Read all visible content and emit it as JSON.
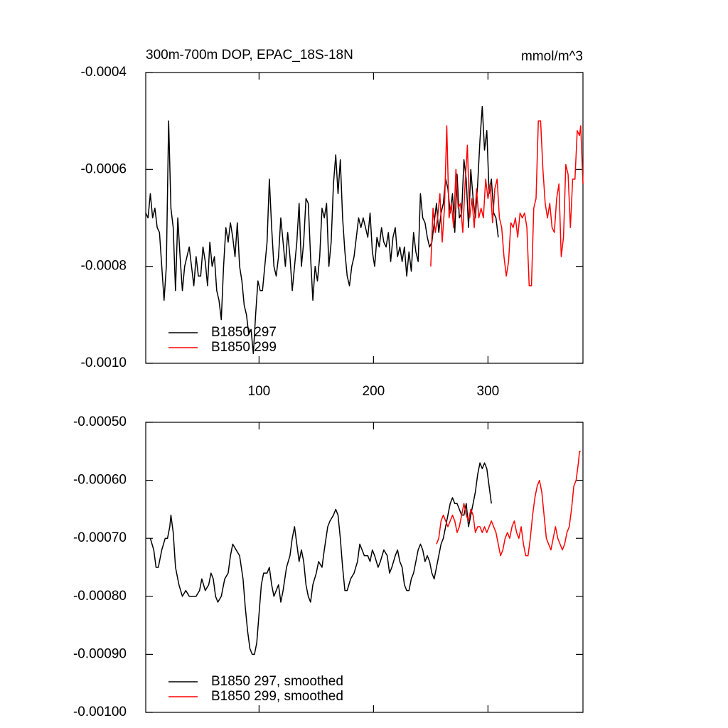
{
  "chart_data": [
    {
      "type": "line",
      "title": "300m-700m DOP, EPAC_18S-18N",
      "units": "mmol/m^3",
      "xlim": [
        1,
        383
      ],
      "xticks": [
        100,
        200,
        300
      ],
      "xtick_labels": true,
      "ylim": [
        -0.001,
        -0.0004
      ],
      "yticks": [
        {
          "value": -0.001,
          "label": "-0.0010"
        },
        {
          "value": -0.0008,
          "label": "-0.0008"
        },
        {
          "value": -0.0006,
          "label": "-0.0006"
        },
        -0.0004
      ],
      "legend": "lower left",
      "series": [
        {
          "name": "B1850 297",
          "color": "#000000",
          "x": [
            1,
            3,
            5,
            7,
            9,
            11,
            13,
            15,
            17,
            19,
            21,
            23,
            25,
            27,
            29,
            31,
            33,
            35,
            37,
            39,
            41,
            43,
            45,
            47,
            49,
            51,
            53,
            55,
            57,
            59,
            61,
            63,
            65,
            67,
            69,
            71,
            73,
            75,
            77,
            79,
            81,
            83,
            85,
            87,
            89,
            91,
            93,
            95,
            97,
            99,
            101,
            103,
            105,
            107,
            109,
            111,
            113,
            115,
            117,
            119,
            121,
            123,
            125,
            127,
            129,
            131,
            133,
            135,
            137,
            139,
            141,
            143,
            145,
            147,
            149,
            151,
            153,
            155,
            157,
            159,
            161,
            163,
            165,
            167,
            169,
            171,
            173,
            175,
            177,
            179,
            181,
            183,
            185,
            187,
            189,
            191,
            193,
            195,
            197,
            199,
            201,
            203,
            205,
            207,
            209,
            211,
            213,
            215,
            217,
            219,
            221,
            223,
            225,
            227,
            229,
            231,
            233,
            235,
            237,
            239,
            241,
            243,
            245,
            247,
            249,
            251,
            253,
            255,
            257,
            259,
            261,
            263,
            265,
            267,
            269,
            271,
            273,
            275,
            277,
            279,
            281,
            283,
            285,
            287,
            289,
            291,
            293,
            295,
            297,
            299,
            301,
            303,
            305,
            307,
            309
          ],
          "values": [
            -0.00069,
            -0.0007,
            -0.00065,
            -0.0007,
            -0.00068,
            -0.00072,
            -0.00073,
            -0.0008,
            -0.00087,
            -0.0008,
            -0.0005,
            -0.00068,
            -0.00072,
            -0.00085,
            -0.0007,
            -0.00078,
            -0.00085,
            -0.0008,
            -0.00078,
            -0.00076,
            -0.0008,
            -0.00084,
            -0.00078,
            -0.00082,
            -0.00082,
            -0.00076,
            -0.00079,
            -0.00084,
            -0.00075,
            -0.0008,
            -0.00078,
            -0.00085,
            -0.00087,
            -0.00091,
            -0.0008,
            -0.00072,
            -0.00075,
            -0.00071,
            -0.00074,
            -0.00078,
            -0.00071,
            -0.0008,
            -0.00083,
            -0.00088,
            -0.0009,
            -0.00094,
            -0.00093,
            -0.00098,
            -0.0009,
            -0.00083,
            -0.00085,
            -0.00085,
            -0.0008,
            -0.00075,
            -0.00062,
            -0.00072,
            -0.0008,
            -0.00082,
            -0.00078,
            -0.0007,
            -0.00075,
            -0.0008,
            -0.00073,
            -0.00078,
            -0.00085,
            -0.0008,
            -0.00075,
            -0.00067,
            -0.0008,
            -0.00075,
            -0.00066,
            -0.00067,
            -0.00078,
            -0.00087,
            -0.0008,
            -0.00083,
            -0.00078,
            -0.00068,
            -0.0007,
            -0.00067,
            -0.0008,
            -0.00075,
            -0.00063,
            -0.00057,
            -0.00065,
            -0.00058,
            -0.0007,
            -0.00077,
            -0.00082,
            -0.00084,
            -0.0008,
            -0.00078,
            -0.00074,
            -0.0007,
            -0.00072,
            -0.0007,
            -0.00072,
            -0.00074,
            -0.00069,
            -0.00077,
            -0.0008,
            -0.00074,
            -0.00076,
            -0.00072,
            -0.00075,
            -0.00076,
            -0.00073,
            -0.00079,
            -0.00074,
            -0.00072,
            -0.00078,
            -0.00076,
            -0.00079,
            -0.00076,
            -0.00082,
            -0.00077,
            -0.00081,
            -0.00073,
            -0.00077,
            -0.00079,
            -0.00065,
            -0.0007,
            -0.00071,
            -0.00074,
            -0.00076,
            -0.00075,
            -0.00071,
            -0.00067,
            -0.00073,
            -0.00069,
            -0.00067,
            -0.00062,
            -0.00064,
            -0.00069,
            -0.00065,
            -0.00073,
            -0.00061,
            -0.0007,
            -0.00069,
            -0.00058,
            -0.00062,
            -0.00072,
            -0.0006,
            -0.00066,
            -0.0007,
            -0.00063,
            -0.00054,
            -0.00047,
            -0.00056,
            -0.00052,
            -0.00065,
            -0.00062,
            -0.00069,
            -0.0007,
            -0.00074
          ]
        },
        {
          "name": "B1850 299",
          "color": "#ff0000",
          "x": [
            250,
            252,
            254,
            256,
            258,
            260,
            262,
            264,
            266,
            268,
            270,
            272,
            274,
            276,
            278,
            280,
            282,
            284,
            286,
            288,
            290,
            292,
            294,
            296,
            298,
            300,
            302,
            304,
            306,
            308,
            310,
            312,
            314,
            316,
            318,
            320,
            322,
            324,
            326,
            328,
            330,
            332,
            334,
            336,
            338,
            340,
            342,
            344,
            346,
            348,
            350,
            352,
            354,
            356,
            358,
            360,
            362,
            364,
            366,
            368,
            370,
            372,
            374,
            376,
            378,
            380,
            381,
            383
          ],
          "values": [
            -0.0008,
            -0.00068,
            -0.00073,
            -0.0007,
            -0.00065,
            -0.00075,
            -0.00068,
            -0.00051,
            -0.0007,
            -0.00067,
            -0.00072,
            -0.0006,
            -0.00068,
            -0.00067,
            -0.00073,
            -0.00063,
            -0.00055,
            -0.0007,
            -0.00066,
            -0.00072,
            -0.00064,
            -0.0007,
            -0.00068,
            -0.0007,
            -0.00062,
            -0.00066,
            -0.00063,
            -0.00071,
            -0.00064,
            -0.00062,
            -0.0007,
            -0.00072,
            -0.00078,
            -0.00082,
            -0.00079,
            -0.00071,
            -0.00072,
            -0.0007,
            -0.00074,
            -0.00069,
            -0.0007,
            -0.00069,
            -0.00072,
            -0.00084,
            -0.00084,
            -0.00068,
            -0.00066,
            -0.0005,
            -0.0005,
            -0.0006,
            -0.00067,
            -0.0007,
            -0.00067,
            -0.00072,
            -0.00073,
            -0.00066,
            -0.00063,
            -0.00078,
            -0.00074,
            -0.00059,
            -0.00061,
            -0.00072,
            -0.00062,
            -0.00062,
            -0.00052,
            -0.00053,
            -0.00051,
            -0.00063
          ]
        }
      ]
    },
    {
      "type": "line",
      "xlim": [
        1,
        383
      ],
      "xticks": [
        100,
        200,
        300
      ],
      "xtick_labels": false,
      "ylim": [
        -0.001,
        -0.0005
      ],
      "yticks": [
        {
          "value": -0.001,
          "label": "-0.00100"
        },
        {
          "value": -0.0009,
          "label": "-0.00090"
        },
        {
          "value": -0.0008,
          "label": "-0.00080"
        },
        {
          "value": -0.0007,
          "label": "-0.00070"
        },
        {
          "value": -0.0006,
          "label": "-0.00060"
        },
        {
          "value": -0.0005,
          "label": "-0.00050"
        }
      ],
      "legend": "lower left",
      "series": [
        {
          "name": "B1850 297, smoothed",
          "color": "#000000",
          "x": [
            5,
            8,
            10,
            12,
            15,
            18,
            20,
            22,
            23,
            25,
            27,
            30,
            33,
            36,
            39,
            42,
            45,
            48,
            50,
            53,
            56,
            58,
            60,
            62,
            64,
            67,
            70,
            73,
            75,
            77,
            80,
            83,
            86,
            88,
            90,
            92,
            94,
            96,
            98,
            100,
            102,
            104,
            107,
            109,
            111,
            113,
            115,
            117,
            119,
            121,
            124,
            127,
            129,
            131,
            133,
            135,
            137,
            139,
            141,
            143,
            145,
            147,
            150,
            152,
            155,
            157,
            160,
            162,
            165,
            167,
            169,
            171,
            173,
            175,
            177,
            180,
            183,
            186,
            188,
            190,
            192,
            195,
            197,
            199,
            201,
            204,
            206,
            209,
            212,
            214,
            216,
            219,
            221,
            223,
            225,
            227,
            229,
            231,
            233,
            235,
            237,
            239,
            241,
            243,
            245,
            247,
            249,
            251,
            253,
            255,
            257,
            259,
            261,
            263,
            265,
            267,
            269,
            271,
            273,
            275,
            277,
            279,
            281,
            283,
            285,
            287,
            289,
            291,
            293,
            295,
            297,
            299,
            301,
            303
          ],
          "values": [
            -0.0007,
            -0.00072,
            -0.00075,
            -0.00075,
            -0.00072,
            -0.0007,
            -0.0007,
            -0.00068,
            -0.00066,
            -0.00069,
            -0.00075,
            -0.00078,
            -0.0008,
            -0.00079,
            -0.0008,
            -0.0008,
            -0.0008,
            -0.00079,
            -0.00077,
            -0.00079,
            -0.00078,
            -0.00076,
            -0.00077,
            -0.0008,
            -0.00081,
            -0.0008,
            -0.00077,
            -0.00076,
            -0.00073,
            -0.00071,
            -0.00072,
            -0.00073,
            -0.00077,
            -0.00082,
            -0.00086,
            -0.00089,
            -0.0009,
            -0.0009,
            -0.00088,
            -0.00083,
            -0.00078,
            -0.00076,
            -0.00076,
            -0.00075,
            -0.00078,
            -0.0008,
            -0.00079,
            -0.00078,
            -0.00081,
            -0.00079,
            -0.00075,
            -0.00073,
            -0.0007,
            -0.00068,
            -0.00071,
            -0.00074,
            -0.00072,
            -0.00074,
            -0.00078,
            -0.0008,
            -0.00081,
            -0.00078,
            -0.00076,
            -0.00074,
            -0.00075,
            -0.00072,
            -0.00068,
            -0.00067,
            -0.00066,
            -0.00065,
            -0.00066,
            -0.0007,
            -0.00075,
            -0.00079,
            -0.00079,
            -0.00077,
            -0.00076,
            -0.00074,
            -0.00071,
            -0.00072,
            -0.00073,
            -0.00073,
            -0.00074,
            -0.00072,
            -0.00073,
            -0.00075,
            -0.00074,
            -0.00072,
            -0.00073,
            -0.00076,
            -0.00075,
            -0.00073,
            -0.00072,
            -0.00074,
            -0.00075,
            -0.00078,
            -0.00079,
            -0.00079,
            -0.00077,
            -0.00076,
            -0.00074,
            -0.00072,
            -0.00071,
            -0.00072,
            -0.00074,
            -0.00073,
            -0.00074,
            -0.00076,
            -0.00077,
            -0.00075,
            -0.00073,
            -0.00071,
            -0.0007,
            -0.00068,
            -0.00066,
            -0.00064,
            -0.00063,
            -0.00064,
            -0.00064,
            -0.00065,
            -0.00066,
            -0.00066,
            -0.00064,
            -0.00068,
            -0.00066,
            -0.00064,
            -0.00062,
            -0.00059,
            -0.00057,
            -0.00058,
            -0.00057,
            -0.00058,
            -0.00061,
            -0.00064
          ]
        },
        {
          "name": "B1850 299, smoothed",
          "color": "#ff0000",
          "x": [
            255,
            257,
            259,
            261,
            263,
            265,
            267,
            269,
            271,
            273,
            275,
            277,
            279,
            281,
            283,
            285,
            287,
            289,
            291,
            293,
            295,
            297,
            299,
            301,
            303,
            305,
            307,
            309,
            311,
            313,
            315,
            317,
            319,
            321,
            323,
            325,
            327,
            329,
            331,
            333,
            335,
            337,
            339,
            341,
            343,
            345,
            347,
            349,
            351,
            353,
            355,
            357,
            359,
            361,
            363,
            365,
            367,
            369,
            371,
            373,
            375,
            377,
            379,
            380,
            381
          ],
          "values": [
            -0.00071,
            -0.0007,
            -0.00067,
            -0.00066,
            -0.00067,
            -0.00068,
            -0.00067,
            -0.00066,
            -0.00067,
            -0.00069,
            -0.00068,
            -0.00066,
            -0.00064,
            -0.00066,
            -0.00067,
            -0.00065,
            -0.00066,
            -0.00069,
            -0.00068,
            -0.00068,
            -0.00069,
            -0.00068,
            -0.00069,
            -0.00068,
            -0.00067,
            -0.00068,
            -0.00069,
            -0.00071,
            -0.00073,
            -0.00072,
            -0.0007,
            -0.00069,
            -0.0007,
            -0.00068,
            -0.00067,
            -0.00069,
            -0.0007,
            -0.00068,
            -0.00071,
            -0.00073,
            -0.00073,
            -0.0007,
            -0.00066,
            -0.00063,
            -0.00061,
            -0.0006,
            -0.00062,
            -0.00066,
            -0.0007,
            -0.00071,
            -0.00072,
            -0.0007,
            -0.00068,
            -0.0007,
            -0.00071,
            -0.00072,
            -0.00071,
            -0.00069,
            -0.00068,
            -0.00065,
            -0.00061,
            -0.0006,
            -0.00057,
            -0.00055,
            -0.00055
          ]
        }
      ]
    }
  ]
}
